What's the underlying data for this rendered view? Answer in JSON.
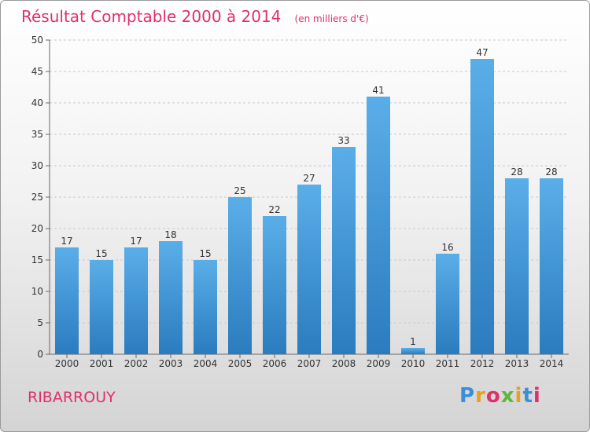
{
  "chart_data": {
    "type": "bar",
    "title": "Résultat Comptable 2000 à 2014",
    "subtitle": "(en milliers d'€)",
    "categories": [
      "2000",
      "2001",
      "2002",
      "2003",
      "2004",
      "2005",
      "2006",
      "2007",
      "2008",
      "2009",
      "2010",
      "2011",
      "2012",
      "2013",
      "2014"
    ],
    "values": [
      17,
      15,
      17,
      18,
      15,
      25,
      22,
      27,
      33,
      41,
      1,
      16,
      47,
      28,
      28
    ],
    "ylim": [
      0,
      50
    ],
    "yticks": [
      0,
      5,
      10,
      15,
      20,
      25,
      30,
      35,
      40,
      45,
      50
    ],
    "grid": true,
    "colors": {
      "bar_light": "#5aaee8",
      "bar_dark": "#2a7cbf",
      "title": "#e0306a"
    }
  },
  "footer": {
    "commune": "RIBARROUY",
    "brand": "Proxiti"
  }
}
